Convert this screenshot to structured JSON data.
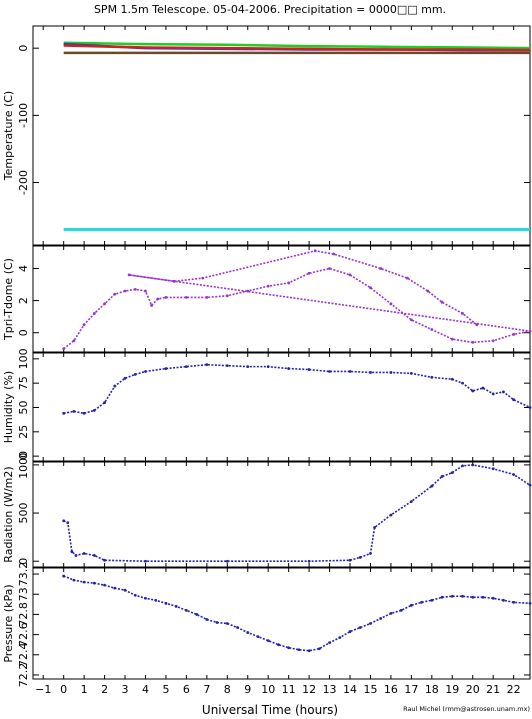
{
  "title": "SPM 1.5m Telescope. 05-04-2006. Precipitation = 0000□□ mm.",
  "xlabel": "Universal Time (hours)",
  "credit": "Raul Michel (rmm@astrosen.unam.mx)",
  "colors": {
    "frame": "#000000",
    "temperature": [
      "#22cc22",
      "#3333cc",
      "#cc2222",
      "#6b4a2b",
      "#22dddd"
    ],
    "tpri_tdome": "#9933cc",
    "humidity": "#2222aa",
    "radiation": "#2222aa",
    "pressure": "#2222aa"
  },
  "chart_data": [
    {
      "type": "line",
      "ylabel": "Temperature (C)",
      "xlim": [
        -1.5,
        22.8
      ],
      "ylim": [
        -293,
        33
      ],
      "yticks": [
        0,
        -100,
        -200
      ],
      "series": [
        {
          "x": [
            0,
            4,
            8,
            12,
            16,
            20,
            22.8
          ],
          "y": [
            8,
            6,
            5,
            3,
            2,
            1,
            0
          ]
        },
        {
          "x": [
            0,
            4,
            8,
            12,
            16,
            20,
            22.8
          ],
          "y": [
            6,
            0,
            -1,
            -2,
            -2,
            -3,
            -3
          ]
        },
        {
          "x": [
            0,
            4,
            8,
            12,
            16,
            20,
            22.8
          ],
          "y": [
            4,
            1,
            0,
            -1,
            -2,
            -2,
            -3
          ]
        },
        {
          "x": [
            0,
            22.8
          ],
          "y": [
            -7,
            -7
          ]
        },
        {
          "x": [
            0,
            22.8
          ],
          "y": [
            -270,
            -270
          ]
        }
      ]
    },
    {
      "type": "scatter",
      "ylabel": "Tpri-Tdome (C)",
      "xlim": [
        -1.5,
        22.8
      ],
      "ylim": [
        -1.2,
        5.4
      ],
      "yticks": [
        0,
        2,
        4
      ],
      "points": [
        [
          0,
          -1
        ],
        [
          0.5,
          -0.5
        ],
        [
          1,
          0.5
        ],
        [
          1.5,
          1.2
        ],
        [
          2,
          1.8
        ],
        [
          2.5,
          2.4
        ],
        [
          3,
          2.6
        ],
        [
          3.5,
          2.7
        ],
        [
          4,
          2.6
        ],
        [
          4.3,
          1.7
        ],
        [
          4.6,
          2.1
        ],
        [
          5,
          2.2
        ],
        [
          6,
          2.2
        ],
        [
          7,
          2.2
        ],
        [
          8,
          2.3
        ],
        [
          9,
          2.6
        ],
        [
          10,
          2.9
        ],
        [
          11,
          3.1
        ],
        [
          12,
          3.7
        ],
        [
          13,
          4.0
        ],
        [
          14,
          3.6
        ],
        [
          15,
          2.8
        ],
        [
          16,
          1.8
        ],
        [
          17,
          0.8
        ],
        [
          18,
          0.2
        ],
        [
          19,
          -0.4
        ],
        [
          20,
          -0.6
        ],
        [
          21,
          -0.5
        ],
        [
          22,
          -0.1
        ],
        [
          22.8,
          0.1
        ],
        [
          3.2,
          3.6
        ],
        [
          5.4,
          3.2
        ],
        [
          6.8,
          3.4
        ],
        [
          12.3,
          5.1
        ],
        [
          13.2,
          4.9
        ],
        [
          15.5,
          4.0
        ],
        [
          16.8,
          3.4
        ],
        [
          17.8,
          2.6
        ],
        [
          18.5,
          1.9
        ],
        [
          19.5,
          1.2
        ],
        [
          20.2,
          0.5
        ]
      ]
    },
    {
      "type": "scatter",
      "ylabel": "Humidity (%)",
      "xlim": [
        -1.5,
        22.8
      ],
      "ylim": [
        -5,
        106
      ],
      "yticks": [
        0,
        25,
        50,
        75,
        100
      ],
      "ytick_labels": [
        "0",
        "25",
        "50",
        "75",
        "100"
      ],
      "points": [
        [
          0,
          44
        ],
        [
          0.5,
          46
        ],
        [
          1,
          44
        ],
        [
          1.5,
          47
        ],
        [
          2,
          55
        ],
        [
          2.5,
          72
        ],
        [
          3,
          80
        ],
        [
          3.5,
          84
        ],
        [
          4,
          87
        ],
        [
          5,
          90
        ],
        [
          6,
          92
        ],
        [
          7,
          94
        ],
        [
          8,
          93
        ],
        [
          9,
          92
        ],
        [
          10,
          92
        ],
        [
          11,
          90
        ],
        [
          12,
          89
        ],
        [
          13,
          87
        ],
        [
          14,
          87
        ],
        [
          15,
          86
        ],
        [
          16,
          86
        ],
        [
          17,
          85
        ],
        [
          18,
          81
        ],
        [
          19,
          79
        ],
        [
          19.5,
          75
        ],
        [
          20,
          67
        ],
        [
          20.5,
          70
        ],
        [
          21,
          64
        ],
        [
          21.5,
          66
        ],
        [
          22,
          58
        ],
        [
          22.8,
          50
        ]
      ]
    },
    {
      "type": "scatter",
      "ylabel": "Radiation (W/m2)",
      "xlim": [
        -1.5,
        22.8
      ],
      "ylim": [
        -60,
        1030
      ],
      "yticks": [
        0,
        500,
        1000
      ],
      "points": [
        [
          0,
          420
        ],
        [
          0.2,
          400
        ],
        [
          0.4,
          100
        ],
        [
          0.6,
          60
        ],
        [
          1,
          80
        ],
        [
          1.5,
          60
        ],
        [
          2,
          10
        ],
        [
          4,
          0
        ],
        [
          8,
          0
        ],
        [
          12,
          0
        ],
        [
          14,
          10
        ],
        [
          14.5,
          40
        ],
        [
          15,
          80
        ],
        [
          15.2,
          350
        ],
        [
          16,
          480
        ],
        [
          17,
          620
        ],
        [
          18,
          780
        ],
        [
          18.5,
          880
        ],
        [
          19,
          920
        ],
        [
          19.5,
          990
        ],
        [
          20,
          1000
        ],
        [
          21,
          960
        ],
        [
          22,
          900
        ],
        [
          22.8,
          790
        ]
      ]
    },
    {
      "type": "scatter",
      "ylabel": "Pressure (kPa)",
      "xlim": [
        -1.5,
        22.8
      ],
      "ylim": [
        72.16,
        73.26
      ],
      "yticks": [
        72.2,
        72.4,
        72.6,
        72.8,
        73.0,
        73.2
      ],
      "ytick_labels": [
        "72.2",
        "72.4",
        "72.6",
        "72.8",
        "73",
        "73.2"
      ],
      "points": [
        [
          0,
          73.18
        ],
        [
          0.5,
          73.14
        ],
        [
          1,
          73.12
        ],
        [
          1.5,
          73.11
        ],
        [
          2,
          73.09
        ],
        [
          2.5,
          73.06
        ],
        [
          3,
          73.04
        ],
        [
          3.5,
          72.99
        ],
        [
          4,
          72.96
        ],
        [
          4.5,
          72.94
        ],
        [
          5,
          72.91
        ],
        [
          5.5,
          72.88
        ],
        [
          6,
          72.84
        ],
        [
          6.5,
          72.8
        ],
        [
          7,
          72.75
        ],
        [
          7.5,
          72.72
        ],
        [
          8,
          72.71
        ],
        [
          8.5,
          72.67
        ],
        [
          9,
          72.62
        ],
        [
          9.5,
          72.58
        ],
        [
          10,
          72.54
        ],
        [
          10.5,
          72.5
        ],
        [
          11,
          72.47
        ],
        [
          11.5,
          72.45
        ],
        [
          12,
          72.44
        ],
        [
          12.5,
          72.46
        ],
        [
          13,
          72.52
        ],
        [
          13.5,
          72.57
        ],
        [
          14,
          72.63
        ],
        [
          14.5,
          72.67
        ],
        [
          15,
          72.71
        ],
        [
          15.5,
          72.76
        ],
        [
          16,
          72.81
        ],
        [
          16.5,
          72.84
        ],
        [
          17,
          72.89
        ],
        [
          17.5,
          72.92
        ],
        [
          18,
          72.94
        ],
        [
          18.5,
          72.97
        ],
        [
          19,
          72.98
        ],
        [
          19.5,
          72.98
        ],
        [
          20,
          72.97
        ],
        [
          20.5,
          72.97
        ],
        [
          21,
          72.96
        ],
        [
          21.5,
          72.94
        ],
        [
          22,
          72.92
        ],
        [
          22.8,
          72.91
        ]
      ]
    }
  ],
  "xticks": [
    -1,
    0,
    1,
    2,
    3,
    4,
    5,
    6,
    7,
    8,
    9,
    10,
    11,
    12,
    13,
    14,
    15,
    16,
    17,
    18,
    19,
    20,
    21,
    22
  ]
}
